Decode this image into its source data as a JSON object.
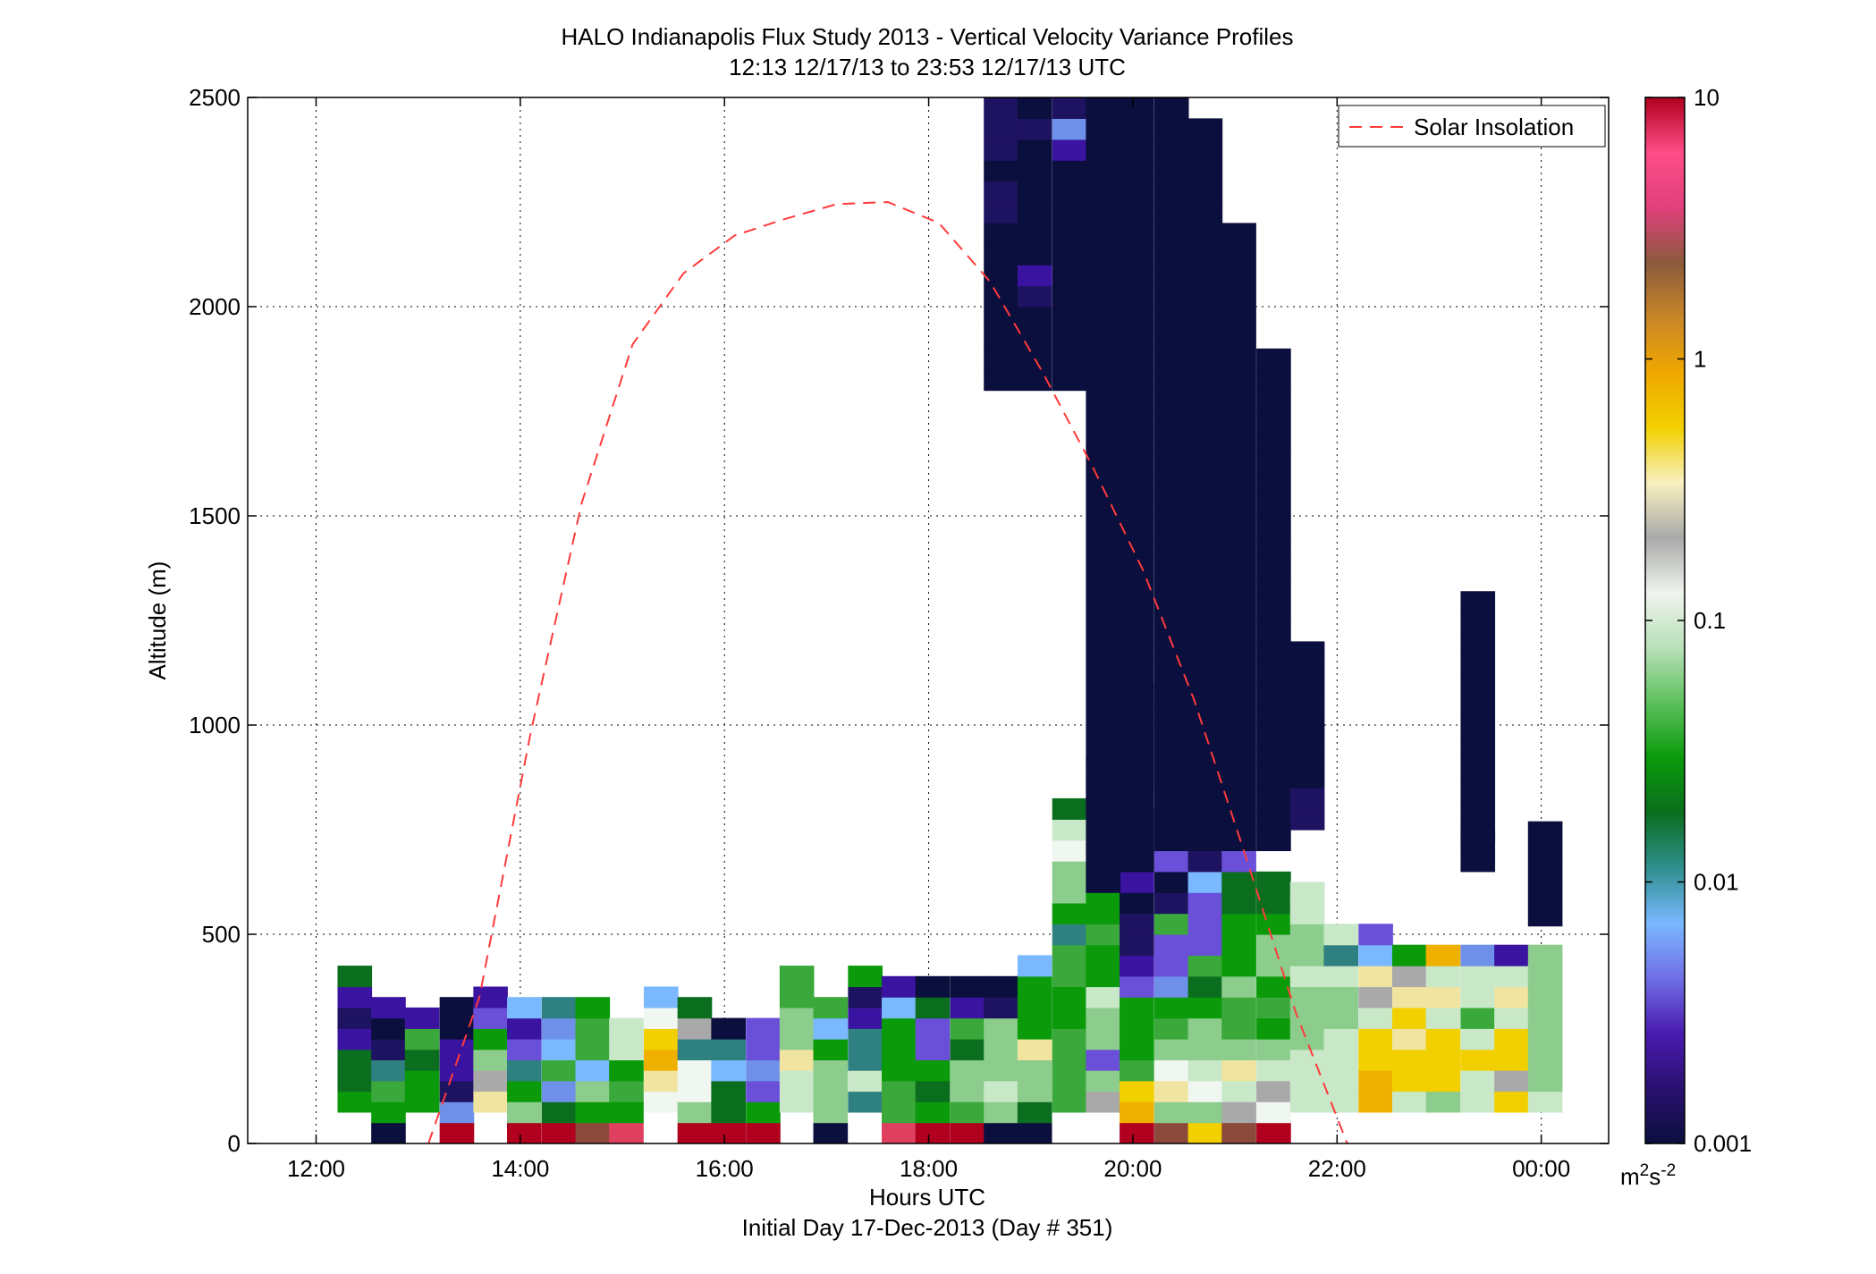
{
  "chart_data": {
    "type": "heatmap",
    "title": "HALO Indianapolis Flux Study 2013 - Vertical Velocity Variance Profiles",
    "subtitle": "12:13 12/17/13 to 23:53 12/17/13  UTC",
    "xlabel": "Hours UTC",
    "xlabel2": "Initial Day 17-Dec-2013 (Day # 351)",
    "ylabel": "Altitude (m)",
    "xlim": [
      11.33,
      24.66
    ],
    "ylim": [
      0,
      2500
    ],
    "x_ticks": [
      {
        "value": 12,
        "label": "12:00"
      },
      {
        "value": 14,
        "label": "14:00"
      },
      {
        "value": 16,
        "label": "16:00"
      },
      {
        "value": 18,
        "label": "18:00"
      },
      {
        "value": 20,
        "label": "20:00"
      },
      {
        "value": 22,
        "label": "22:00"
      },
      {
        "value": 24,
        "label": "00:00"
      }
    ],
    "y_ticks": [
      {
        "value": 0,
        "label": "0"
      },
      {
        "value": 500,
        "label": "500"
      },
      {
        "value": 1000,
        "label": "1000"
      },
      {
        "value": 1500,
        "label": "1500"
      },
      {
        "value": 2000,
        "label": "2000"
      },
      {
        "value": 2500,
        "label": "2500"
      }
    ],
    "grid": true,
    "legend": {
      "position": "top-right",
      "entries": [
        {
          "name": "Solar Insolation",
          "color": "#ff3b3b",
          "style": "dashed"
        }
      ]
    },
    "colorbar": {
      "scale": "log",
      "range": [
        0.001,
        10
      ],
      "ticks": [
        {
          "value": 10,
          "label": "10"
        },
        {
          "value": 1,
          "label": "1"
        },
        {
          "value": 0.1,
          "label": "0.1"
        },
        {
          "value": 0.01,
          "label": "0.01"
        },
        {
          "value": 0.001,
          "label": "0.001"
        }
      ],
      "unit_base": "m",
      "unit_sup1": "2",
      "unit_mid": "s",
      "unit_sup2": "-2",
      "stops": [
        "#0b0f3d",
        "#2a1070",
        "#4a1bb0",
        "#6f6fe6",
        "#7ab8ff",
        "#2f8f8f",
        "#0a6e1e",
        "#0a9a0a",
        "#5cc05c",
        "#b8e0b8",
        "#f0f4ee",
        "#a9a9a9",
        "#f8f0c0",
        "#f2d000",
        "#f0a800",
        "#c88628",
        "#8c5a3c",
        "#e0407c",
        "#ff4d88",
        "#b0001e"
      ]
    },
    "solar_insolation": {
      "x": [
        13.1,
        13.6,
        14.1,
        14.6,
        15.1,
        15.6,
        16.1,
        16.6,
        17.1,
        17.6,
        18.1,
        18.6,
        19.1,
        19.6,
        20.1,
        20.6,
        21.1,
        21.6,
        22.1,
        22.2
      ],
      "y": [
        0,
        350,
        980,
        1530,
        1910,
        2080,
        2170,
        2210,
        2245,
        2250,
        2200,
        2060,
        1850,
        1620,
        1370,
        1060,
        690,
        310,
        0,
        -50
      ]
    },
    "cell_width_hours": 0.333,
    "cell_height_m": 50,
    "palette": {
      "n": "#0b0f3d",
      "d": "#1e1360",
      "p": "#3a14a0",
      "v": "#6a4fd8",
      "b": "#6e90e8",
      "c": "#7ab8ff",
      "t": "#2f8080",
      "G": "#0a6e1e",
      "g": "#0a9a0a",
      "m": "#3aa83a",
      "l": "#8ccc8c",
      "e": "#c8e8c8",
      "w": "#f0f6f0",
      "a": "#a9a9a9",
      "y": "#f0e4a0",
      "Y": "#f2d000",
      "o": "#f0b000",
      "r": "#b0001e",
      "k": "#e04060",
      "q": "#d05070",
      "s": "#8c4a3c"
    },
    "columns": [
      {
        "x": 12.21,
        "y0": 75,
        "cells": "gGGpdpG"
      },
      {
        "x": 12.54,
        "y0": 0,
        "cells": "ngmtdnp"
      },
      {
        "x": 12.87,
        "y0": 75,
        "cells": "ggGmp"
      },
      {
        "x": 13.21,
        "y0": 0,
        "cells": "rbdppnn"
      },
      {
        "x": 13.54,
        "y0": 75,
        "cells": "yalgvp"
      },
      {
        "x": 13.87,
        "y0": 0,
        "cells": "rlgtvpc"
      },
      {
        "x": 14.21,
        "y0": 0,
        "cells": "rGbmcbt"
      },
      {
        "x": 14.54,
        "y0": 0,
        "cells": "sglcmmg"
      },
      {
        "x": 14.87,
        "y0": 0,
        "cells": "kgmgee"
      },
      {
        "x": 15.21,
        "y0": 75,
        "cells": "wyoYwc"
      },
      {
        "x": 15.54,
        "y0": 0,
        "cells": "rlwwtaG"
      },
      {
        "x": 15.87,
        "y0": 0,
        "cells": "rGGctn"
      },
      {
        "x": 16.21,
        "y0": 0,
        "cells": "rgvbvv"
      },
      {
        "x": 16.54,
        "y0": 75,
        "cells": "eeyllmm"
      },
      {
        "x": 16.87,
        "y0": 0,
        "cells": "nlllgcm"
      },
      {
        "x": 17.21,
        "y0": 75,
        "cells": "tettpdg"
      },
      {
        "x": 17.54,
        "y0": 0,
        "cells": "kmmgggcp"
      },
      {
        "x": 17.87,
        "y0": 0,
        "cells": "rgGgvvGn"
      },
      {
        "x": 18.21,
        "y0": 0,
        "cells": "rmllGmpn"
      },
      {
        "x": 18.54,
        "y0": 0,
        "cells": "nlellldn"
      },
      {
        "x": 18.87,
        "y0": 0,
        "cells": "nGllygggc"
      },
      {
        "x": 19.21,
        "y0": 75,
        "cells": "mmmmggmmtgllweG"
      },
      {
        "x": 19.54,
        "y0": 75,
        "cells": "alvlleggmgggeyvdd"
      },
      {
        "x": 19.87,
        "y0": 0,
        "cells": "roYmgggvpddnpnndbGGppp"
      },
      {
        "x": 20.21,
        "y0": 0,
        "cells": "slywlmgbvvmdnvpn"
      },
      {
        "x": 20.54,
        "y0": 0,
        "cells": "YlwellgGmvvvcd"
      },
      {
        "x": 20.87,
        "y0": 0,
        "cells": "saeylmmlgggGGv"
      },
      {
        "x": 21.21,
        "y0": 0,
        "cells": "rwaelgmgllgGG"
      },
      {
        "x": 21.54,
        "y0": 75,
        "cells": "eeelllellee"
      },
      {
        "x": 21.87,
        "y0": 75,
        "cells": "eeeellete"
      },
      {
        "x": 22.21,
        "y0": 75,
        "cells": "ooYYeaycv"
      },
      {
        "x": 22.54,
        "y0": 75,
        "cells": "eYYyYyag"
      },
      {
        "x": 22.87,
        "y0": 75,
        "cells": "lYYYeyeo"
      },
      {
        "x": 23.21,
        "y0": 75,
        "cells": "eeYemeeb"
      },
      {
        "x": 23.54,
        "y0": 75,
        "cells": "YaYYeyep"
      },
      {
        "x": 23.87,
        "y0": 75,
        "cells": "elllllll"
      }
    ],
    "upper_columns": [
      {
        "x": 18.54,
        "y0": 1800,
        "cells": "nnnnnnnnddndddnnpnp"
      },
      {
        "x": 18.87,
        "y0": 1800,
        "cells": "nnnndpnnnnnndnn"
      },
      {
        "x": 19.21,
        "y0": 1800,
        "cells": "nnnnnnnnnnnpbdpp"
      },
      {
        "x": 19.54,
        "y0": 600,
        "cells": "nnnnnnnnnnnnnnnnnnnnnnnnnnnnnnnnnnnnnnnn"
      },
      {
        "x": 19.87,
        "y0": 650,
        "cells": "nnnnnnnnnnnnnnnnnnnnnnnnnnnnnnnnnnnnnnnn"
      },
      {
        "x": 20.21,
        "y0": 700,
        "cells": "nnnnnnnnnnnnnnnnnnnnnnnnnnnnnnnnnnnnnnn"
      },
      {
        "x": 20.54,
        "y0": 700,
        "cells": "nnnnnnnnnnnnnnnnnnnnnnnnnnnnnnnnnnn"
      },
      {
        "x": 20.87,
        "y0": 700,
        "cells": "nnnnnnnnnnnnnnnnnnnnnnnnnnnnnn"
      },
      {
        "x": 21.21,
        "y0": 700,
        "cells": "nnnnnnnnnnnnnnnnnnnnnnnn"
      },
      {
        "x": 21.54,
        "y0": 750,
        "cells": "ddnnnnnnn"
      },
      {
        "x": 23.21,
        "y0": 720,
        "cells": "nnnnnnnnnnnn"
      },
      {
        "x": 23.21,
        "y0": 650,
        "cells": "nn"
      },
      {
        "x": 23.87,
        "y0": 520,
        "cells": "nnnnn"
      }
    ]
  }
}
